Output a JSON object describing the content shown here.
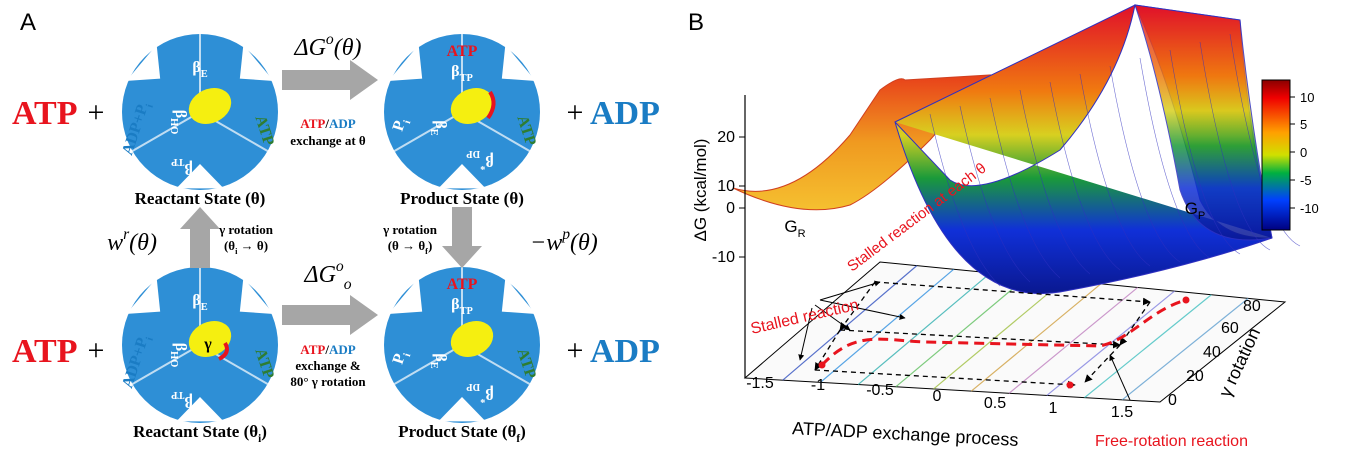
{
  "panel_a": {
    "label": "A",
    "equation_top": {
      "atp": "ATP",
      "plus_left": "+",
      "plus_right": "+",
      "adp": "ADP"
    },
    "equation_bottom": {
      "atp": "ATP",
      "plus_left": "+",
      "plus_right": "+",
      "adp": "ADP"
    },
    "reactant_theta": {
      "beta_e": [
        "β",
        {
          "sub": "E"
        }
      ],
      "beta_ho": [
        "β",
        {
          "sub": "HO"
        }
      ],
      "beta_tp": [
        "β",
        {
          "sub": "TP"
        }
      ],
      "ligand_left": [
        "ADP+P",
        {
          "sub": "i"
        }
      ],
      "ligand_right": "ATP",
      "caption": "Reactant State (θ)"
    },
    "product_theta": {
      "atp_top": "ATP",
      "beta_tp": [
        "β",
        {
          "sub": "TP"
        }
      ],
      "beta_e": [
        "β",
        {
          "sub": "E"
        }
      ],
      "beta_dp": [
        "β",
        {
          "sup": "*"
        },
        {
          "sub": "DP"
        }
      ],
      "ligand_left": [
        "P",
        {
          "sub": "i"
        }
      ],
      "ligand_right": "ATP",
      "caption": "Product State (θ)"
    },
    "reactant_initial": {
      "beta_e": [
        "β",
        {
          "sub": "E"
        }
      ],
      "beta_ho": [
        "β",
        {
          "sub": "HO"
        }
      ],
      "beta_tp": [
        "β",
        {
          "sub": "TP"
        }
      ],
      "gamma": "γ",
      "ligand_left": [
        "ADP+P",
        {
          "sub": "i"
        }
      ],
      "ligand_right": "ATP",
      "caption": [
        "Reactant State (θ",
        {
          "sub": "i"
        },
        ")"
      ]
    },
    "product_final": {
      "atp_top": "ATP",
      "beta_tp": [
        "β",
        {
          "sub": "TP"
        }
      ],
      "beta_e": [
        "β",
        {
          "sub": "E"
        }
      ],
      "beta_dp": [
        "β",
        {
          "sup": "*"
        },
        {
          "sub": "DP"
        }
      ],
      "ligand_left": [
        "P",
        {
          "sub": "i"
        }
      ],
      "ligand_right": "ATP",
      "caption": [
        "Product State (θ",
        {
          "sub": "f"
        },
        ")"
      ]
    },
    "arrow_top": {
      "energy": [
        "ΔG",
        {
          "sup": "o"
        },
        "(θ)"
      ],
      "note_line1": [
        "ATP",
        "/",
        "ADP"
      ],
      "note_line2": "exchange at θ"
    },
    "arrow_bottom": {
      "energy": [
        "ΔG",
        {
          "sup": "o"
        },
        {
          "sub": "o"
        }
      ],
      "note_line1": [
        "ATP",
        "/",
        "ADP"
      ],
      "note_line2": "exchange &",
      "note_line3": "80° γ rotation"
    },
    "arrow_left": {
      "work": [
        "w",
        {
          "sup": "r"
        },
        "(θ)"
      ],
      "note_line1": "γ rotation",
      "note_line2": [
        "(θ",
        {
          "sub": "i"
        },
        " → θ)"
      ]
    },
    "arrow_right": {
      "work": [
        "−w",
        {
          "sup": "p"
        },
        "(θ)"
      ],
      "note_line1": "γ rotation",
      "note_line2": [
        "(θ → θ",
        {
          "sub": "f"
        },
        ")"
      ]
    }
  },
  "panel_b": {
    "label": "B",
    "y_axis_label": "ΔG (kcal/mol)",
    "y_ticks": [
      20,
      10,
      0,
      -10
    ],
    "x_axis_label": "ATP/ADP exchange process",
    "x_ticks": [
      -1.5,
      -1,
      -0.5,
      0,
      0.5,
      1,
      1.5
    ],
    "gamma_axis_label": "γ rotation",
    "gamma_ticks": [
      0,
      20,
      40,
      60,
      80
    ],
    "colorbar_ticks": [
      10,
      5,
      0,
      -5,
      -10
    ],
    "surface_reactant": [
      "G",
      {
        "sub": "R"
      }
    ],
    "surface_product": [
      "G",
      {
        "sub": "P"
      }
    ],
    "annotation_surface": "Stalled reaction at each θ",
    "annotation_stalled": "Stalled reaction",
    "annotation_free": "Free-rotation reaction"
  }
}
